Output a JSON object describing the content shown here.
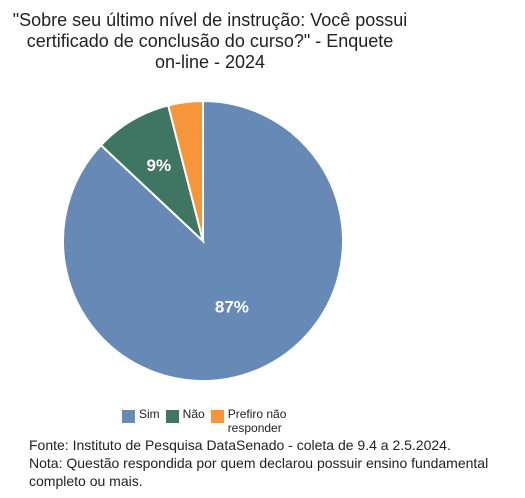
{
  "chart_data": {
    "type": "pie",
    "title": "\"Sobre seu último nível de instrução: Você possui certificado de conclusão do curso?\" - Enquete on-line - 2024",
    "title_lines": [
      "\"Sobre seu último nível de instrução: Você possui",
      "certificado de conclusão do curso?\" - Enquete",
      "on-line - 2024"
    ],
    "categories": [
      "Sim",
      "Não",
      "Prefiro não responder"
    ],
    "values": [
      87,
      9,
      4
    ],
    "data_labels": [
      "87%",
      "9%",
      ""
    ],
    "colors": [
      "#6689b5",
      "#3f7663",
      "#f7953b"
    ],
    "legend_position": "bottom"
  },
  "footnotes": {
    "source": "Fonte: Instituto de Pesquisa DataSenado - coleta de 9.4 a 2.5.2024.",
    "note_line1": "Nota: Questão respondida por quem declarou possuir ensino fundamental",
    "note_line2": "completo ou mais."
  }
}
